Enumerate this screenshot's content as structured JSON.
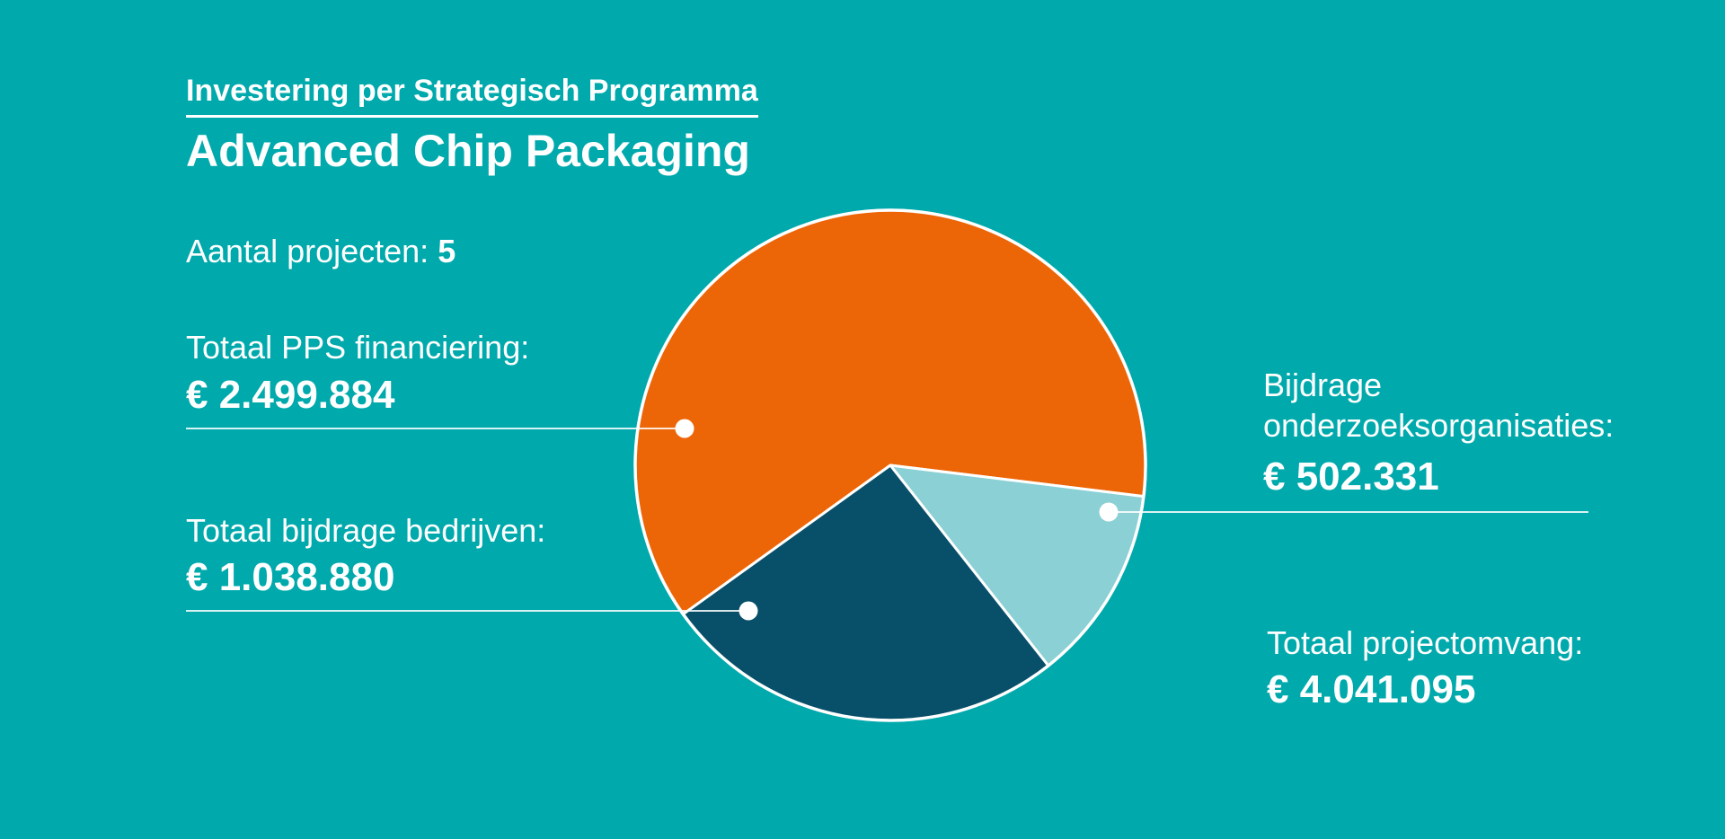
{
  "page": {
    "background_color": "#00A9AC",
    "text_color": "#FFFFFF"
  },
  "header": {
    "kicker": "Investering per Strategisch Programma",
    "title": "Advanced Chip Packaging"
  },
  "stats": {
    "projects": {
      "label": "Aantal projecten:",
      "value": "5"
    },
    "pps": {
      "label": "Totaal PPS financiering:",
      "value": "€ 2.499.884"
    },
    "bedrijven": {
      "label": "Totaal bijdrage bedrijven:",
      "value": "€ 1.038.880"
    },
    "onderzoek": {
      "label": "Bijdrage onderzoeksorganisaties:",
      "value": "€ 502.331"
    },
    "totaal": {
      "label": "Totaal projectomvang:",
      "value": "€ 4.041.095"
    }
  },
  "chart_data": {
    "type": "pie",
    "title": "Investering per Strategisch Programma",
    "subtitle": "Advanced Chip Packaging",
    "currency": "EUR",
    "total": 4041095,
    "total_formatted": "€ 4.041.095",
    "start_angle_deg": 144.3,
    "clockwise": true,
    "slices": [
      {
        "id": "pps",
        "label": "Totaal PPS financiering",
        "value": 2499884,
        "value_formatted": "€ 2.499.884",
        "color": "#EC6608"
      },
      {
        "id": "onderzoek",
        "label": "Bijdrage onderzoeksorganisaties",
        "value": 502331,
        "value_formatted": "€ 502.331",
        "color": "#8BD0D5"
      },
      {
        "id": "bedrijven",
        "label": "Totaal bijdrage bedrijven",
        "value": 1038880,
        "value_formatted": "€ 1.038.880",
        "color": "#084F69"
      }
    ],
    "stroke_color": "#FFFFFF",
    "legend_position": "none",
    "annotations": "labels connected to slices by white leader lines with dot markers"
  }
}
